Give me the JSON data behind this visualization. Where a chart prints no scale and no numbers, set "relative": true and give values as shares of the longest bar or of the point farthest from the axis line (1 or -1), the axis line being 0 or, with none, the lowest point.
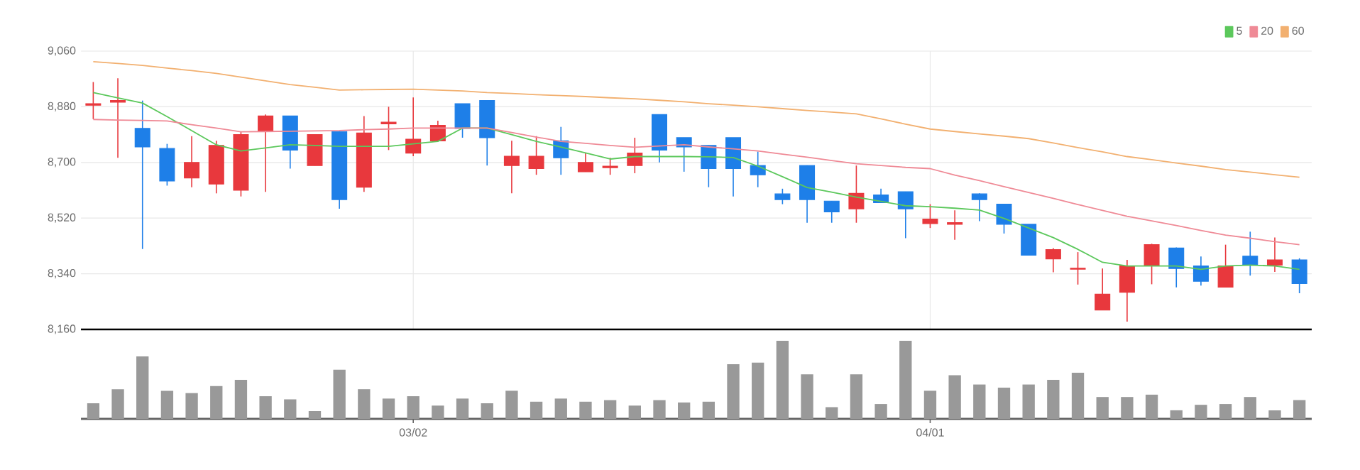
{
  "chart_data": [
    {
      "type": "candlestick",
      "categories": [
        null,
        null,
        null,
        null,
        null,
        null,
        null,
        null,
        null,
        null,
        null,
        null,
        null,
        null,
        null,
        null,
        null,
        null,
        null,
        null,
        null,
        null,
        null,
        null,
        null,
        null,
        null,
        null,
        null,
        null,
        null,
        null,
        null,
        null,
        null,
        null,
        null,
        null,
        null,
        null,
        null,
        null,
        null,
        null,
        null,
        null,
        null,
        null,
        null,
        null
      ],
      "ohlc": [
        [
          8885,
          8960,
          8840,
          8890
        ],
        [
          8895,
          8972,
          8715,
          8900
        ],
        [
          8810,
          8900,
          8420,
          8750
        ],
        [
          8745,
          8760,
          8625,
          8640
        ],
        [
          8650,
          8785,
          8620,
          8700
        ],
        [
          8630,
          8770,
          8600,
          8755
        ],
        [
          8610,
          8800,
          8590,
          8790
        ],
        [
          8800,
          8855,
          8605,
          8850
        ],
        [
          8850,
          8850,
          8680,
          8740
        ],
        [
          8690,
          8790,
          8690,
          8790
        ],
        [
          8800,
          8800,
          8550,
          8580
        ],
        [
          8620,
          8850,
          8605,
          8795
        ],
        [
          8825,
          8880,
          8740,
          8830
        ],
        [
          8730,
          8910,
          8720,
          8775
        ],
        [
          8770,
          8835,
          8770,
          8820
        ],
        [
          8890,
          8890,
          8780,
          8810
        ],
        [
          8900,
          8900,
          8690,
          8780
        ],
        [
          8690,
          8770,
          8600,
          8720
        ],
        [
          8680,
          8785,
          8660,
          8720
        ],
        [
          8770,
          8815,
          8660,
          8715
        ],
        [
          8670,
          8730,
          8670,
          8700
        ],
        [
          8683,
          8715,
          8660,
          8688
        ],
        [
          8690,
          8780,
          8665,
          8730
        ],
        [
          8855,
          8855,
          8700,
          8740
        ],
        [
          8780,
          8780,
          8670,
          8750
        ],
        [
          8755,
          8755,
          8620,
          8680
        ],
        [
          8780,
          8780,
          8590,
          8680
        ],
        [
          8690,
          8735,
          8620,
          8660
        ],
        [
          8598,
          8615,
          8565,
          8580
        ],
        [
          8690,
          8690,
          8505,
          8580
        ],
        [
          8575,
          8575,
          8505,
          8540
        ],
        [
          8550,
          8690,
          8505,
          8600
        ],
        [
          8595,
          8615,
          8570,
          8570
        ],
        [
          8605,
          8605,
          8455,
          8550
        ],
        [
          8502,
          8565,
          8488,
          8517
        ],
        [
          8500,
          8545,
          8450,
          8505
        ],
        [
          8598,
          8600,
          8510,
          8580
        ],
        [
          8565,
          8565,
          8470,
          8500
        ],
        [
          8500,
          8500,
          8400,
          8400
        ],
        [
          8388,
          8423,
          8345,
          8418
        ],
        [
          8355,
          8410,
          8305,
          8358
        ],
        [
          8223,
          8357,
          8223,
          8274
        ],
        [
          8280,
          8385,
          8185,
          8365
        ],
        [
          8368,
          8437,
          8306,
          8434
        ],
        [
          8423,
          8425,
          8296,
          8357
        ],
        [
          8365,
          8396,
          8302,
          8316
        ],
        [
          8297,
          8434,
          8297,
          8365
        ],
        [
          8397,
          8476,
          8334,
          8368
        ],
        [
          8368,
          8457,
          8346,
          8385
        ],
        [
          8385,
          8390,
          8277,
          8308
        ]
      ],
      "colors": [
        "#e8383d",
        "#e8383d",
        "#1e7fe8",
        "#1e7fe8",
        "#e8383d",
        "#e8383d",
        "#e8383d",
        "#e8383d",
        "#1e7fe8",
        "#e8383d",
        "#1e7fe8",
        "#e8383d",
        "#e8383d",
        "#e8383d",
        "#e8383d",
        "#1e7fe8",
        "#1e7fe8",
        "#e8383d",
        "#e8383d",
        "#1e7fe8",
        "#e8383d",
        "#e8383d",
        "#e8383d",
        "#1e7fe8",
        "#1e7fe8",
        "#1e7fe8",
        "#1e7fe8",
        "#1e7fe8",
        "#1e7fe8",
        "#1e7fe8",
        "#1e7fe8",
        "#e8383d",
        "#1e7fe8",
        "#1e7fe8",
        "#e8383d",
        "#e8383d",
        "#1e7fe8",
        "#1e7fe8",
        "#1e7fe8",
        "#e8383d",
        "#e8383d",
        "#e8383d",
        "#e8383d",
        "#e8383d",
        "#1e7fe8",
        "#1e7fe8",
        "#e8383d",
        "#1e7fe8",
        "#e8383d",
        "#1e7fe8"
      ],
      "series": [
        {
          "type": "line",
          "name": "5",
          "color": "#5cc85c",
          "values": [
            8926,
            8909,
            8892,
            8848,
            8803,
            8757,
            8737,
            8747,
            8757,
            8755,
            8752,
            8752,
            8752,
            8760,
            8768,
            8811,
            8811,
            8790,
            8768,
            8750,
            8731,
            8711,
            8719,
            8719,
            8719,
            8718,
            8716,
            8688,
            8654,
            8619,
            8604,
            8588,
            8574,
            8560,
            8557,
            8552,
            8546,
            8519,
            8488,
            8457,
            8419,
            8377,
            8365,
            8365,
            8365,
            8354,
            8365,
            8368,
            8365,
            8354
          ]
        },
        {
          "type": "line",
          "name": "20",
          "color": "#ef8a96",
          "values": [
            8839,
            8837,
            8836,
            8834,
            8822,
            8811,
            8799,
            8800,
            8801,
            8802,
            8803,
            8806,
            8808,
            8811,
            8811,
            8811,
            8811,
            8797,
            8782,
            8768,
            8762,
            8755,
            8749,
            8753,
            8757,
            8750,
            8744,
            8737,
            8727,
            8717,
            8706,
            8696,
            8690,
            8684,
            8680,
            8659,
            8641,
            8622,
            8603,
            8584,
            8564,
            8545,
            8526,
            8511,
            8496,
            8480,
            8465,
            8455,
            8444,
            8434
          ]
        },
        {
          "type": "line",
          "name": "60",
          "color": "#f2b070",
          "values": [
            9026,
            9020,
            9014,
            9005,
            8997,
            8988,
            8976,
            8964,
            8952,
            8943,
            8934,
            8935,
            8936,
            8937,
            8934,
            8931,
            8926,
            8923,
            8919,
            8916,
            8913,
            8909,
            8906,
            8901,
            8896,
            8890,
            8885,
            8880,
            8874,
            8868,
            8863,
            8857,
            8841,
            8824,
            8808,
            8800,
            8792,
            8785,
            8777,
            8763,
            8748,
            8734,
            8719,
            8709,
            8698,
            8688,
            8677,
            8669,
            8660,
            8652
          ]
        }
      ],
      "ylim": [
        8160,
        9060
      ],
      "yticks": [
        {
          "value": 8160,
          "label": "8,160"
        },
        {
          "value": 8340,
          "label": "8,340"
        },
        {
          "value": 8520,
          "label": "8,520"
        },
        {
          "value": 8700,
          "label": "8,700"
        },
        {
          "value": 8880,
          "label": "8,880"
        },
        {
          "value": 9060,
          "label": "9,060"
        }
      ],
      "grid": true,
      "legend": "top right",
      "tick_labels": "y"
    },
    {
      "type": "bar",
      "relative": true,
      "color": "#999999",
      "tick_labels": "x",
      "categories": [
        null,
        null,
        null,
        null,
        null,
        null,
        null,
        null,
        null,
        null,
        null,
        null,
        null,
        "03/02",
        null,
        null,
        null,
        null,
        null,
        null,
        null,
        null,
        null,
        null,
        null,
        null,
        null,
        null,
        null,
        null,
        null,
        null,
        null,
        null,
        "04/01",
        null,
        null,
        null,
        null,
        null,
        null,
        null,
        null,
        null,
        null,
        null,
        null,
        null,
        null,
        null
      ],
      "values": [
        0.2,
        0.38,
        0.8,
        0.36,
        0.33,
        0.42,
        0.5,
        0.29,
        0.25,
        0.1,
        0.63,
        0.38,
        0.26,
        0.29,
        0.17,
        0.26,
        0.2,
        0.36,
        0.22,
        0.26,
        0.22,
        0.24,
        0.17,
        0.24,
        0.21,
        0.22,
        0.7,
        0.72,
        1,
        0.57,
        0.15,
        0.57,
        0.19,
        1,
        0.36,
        0.56,
        0.44,
        0.4,
        0.44,
        0.5,
        0.59,
        0.28,
        0.28,
        0.31,
        0.11,
        0.18,
        0.19,
        0.28,
        0.11,
        0.24
      ]
    }
  ]
}
